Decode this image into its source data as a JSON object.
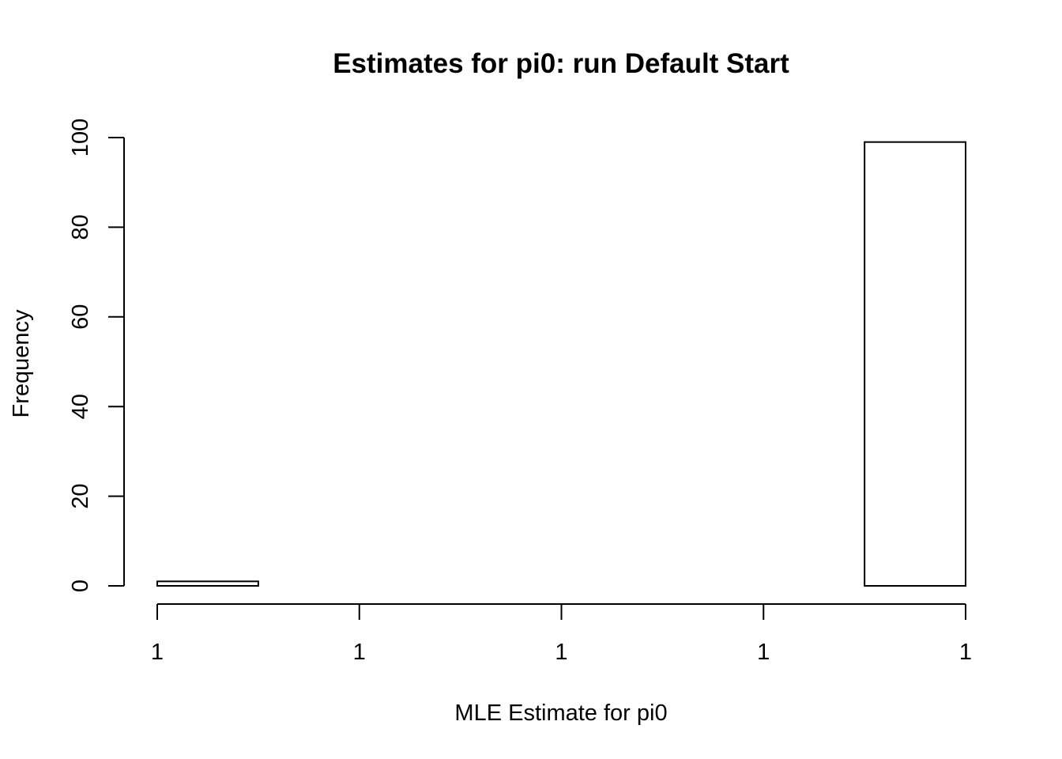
{
  "chart_data": {
    "type": "bar",
    "title": "Estimates for pi0: run Default Start",
    "xlabel": "MLE Estimate for pi0",
    "ylabel": "Frequency",
    "x_tick_labels": [
      "1",
      "1",
      "1",
      "1",
      "1"
    ],
    "y_ticks": [
      0,
      20,
      40,
      60,
      80,
      100
    ],
    "y_tick_labels": [
      "0",
      "20",
      "40",
      "60",
      "80",
      "100"
    ],
    "ylim": [
      0,
      100
    ],
    "bins": 8,
    "values": [
      1,
      0,
      0,
      0,
      0,
      0,
      0,
      99
    ],
    "grid": false,
    "legend": "none",
    "colors": {
      "bar_fill": "#ffffff",
      "bar_stroke": "#000000",
      "axis": "#000000"
    }
  }
}
